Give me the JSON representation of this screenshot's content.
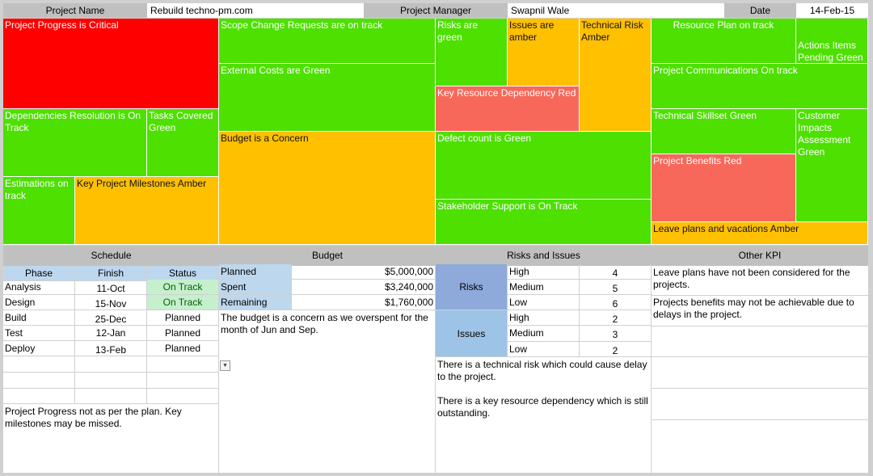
{
  "header": {
    "project_name_label": "Project Name",
    "project_name": "Rebuild techno-pm.com",
    "manager_label": "Project Manager",
    "manager": "Swapnil Wale",
    "date_label": "Date",
    "date": "14-Feb-15"
  },
  "colors": {
    "red": "#ff0000",
    "green": "#4de000",
    "amber": "#ffc000",
    "salmon": "#f8685a"
  },
  "tiles": {
    "project_progress": "Project Progress is Critical",
    "scope_change": "Scope Change Requests are on track",
    "risks_green": "Risks are green",
    "issues_amber": "Issues are amber",
    "technical_risk": "Technical Risk Amber",
    "resource_plan": "Resource Plan on track",
    "actions_items": "Actions Items Pending Green",
    "external_costs": "External Costs are Green",
    "key_resource": "Key Resource Dependency Red",
    "project_comms": "Project Communications On track",
    "dependencies": "Dependencies Resolution is On Track",
    "tasks_covered": "Tasks Covered Green",
    "budget_concern": "Budget is a Concern",
    "defect_count": "Defect count is Green",
    "technical_skillset": "Technical Skillset Green",
    "customer_impacts": "Customer Impacts Assessment Green",
    "project_benefits": "Project Benefits Red",
    "estimations": "Estimations on track",
    "key_milestones": "Key Project Milestones Amber",
    "stakeholder": "Stakeholder Support is On Track",
    "leave_plans": "Leave plans and vacations Amber"
  },
  "schedule": {
    "title": "Schedule",
    "headers": [
      "Phase",
      "Finish",
      "Status"
    ],
    "rows": [
      [
        "Analysis",
        "11-Oct",
        "On Track"
      ],
      [
        "Design",
        "15-Nov",
        "On Track"
      ],
      [
        "Build",
        "25-Dec",
        "Planned"
      ],
      [
        "Test",
        "12-Jan",
        "Planned"
      ],
      [
        "Deploy",
        "13-Feb",
        "Planned"
      ]
    ],
    "note": "Project Progress not as per the plan. Key milestones may be missed."
  },
  "budget": {
    "title": "Budget",
    "rows": [
      [
        "Planned",
        "$5,000,000"
      ],
      [
        "Spent",
        "$3,240,000"
      ],
      [
        "Remaining",
        "$1,760,000"
      ]
    ],
    "note": "The budget is a concern as we overspent for the month of Jun and Sep."
  },
  "risks": {
    "title": "Risks and Issues",
    "risks_label": "Risks",
    "issues_label": "Issues",
    "risk_rows": [
      [
        "High",
        "4"
      ],
      [
        "Medium",
        "5"
      ],
      [
        "Low",
        "6"
      ]
    ],
    "issue_rows": [
      [
        "High",
        "2"
      ],
      [
        "Medium",
        "3"
      ],
      [
        "Low",
        "2"
      ]
    ],
    "note1": "There is a technical risk which could cause delay to the project.",
    "note2": "There is a key resource dependency which is still outstanding."
  },
  "kpi": {
    "title": "Other KPI",
    "note1": "Leave plans have not been considered for the projects.",
    "note2": "Projects benefits may not be achievable due to delays in the project."
  }
}
